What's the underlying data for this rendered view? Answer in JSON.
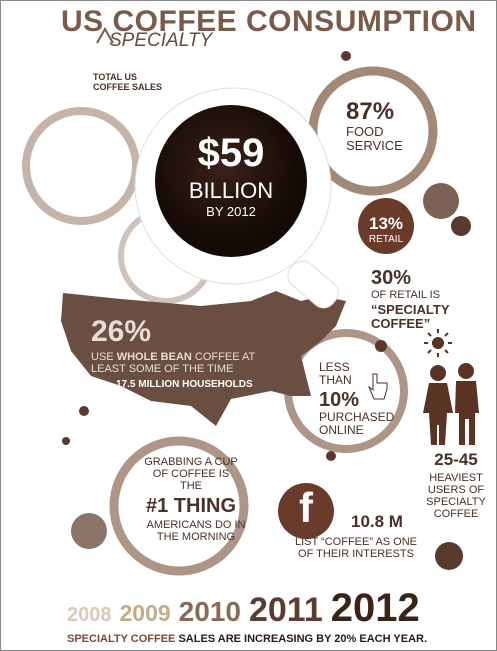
{
  "header": {
    "title": "US COFFEE CONSUMPTION",
    "insert": "SPECIALTY"
  },
  "total_sales": {
    "label": "TOTAL US COFFEE SALES",
    "amount": "$59",
    "unit": "BILLION",
    "year": "BY 2012"
  },
  "food_service": {
    "value": "87%",
    "label": "FOOD SERVICE"
  },
  "retail": {
    "value": "13%",
    "label": "RETAIL"
  },
  "specialty_retail": {
    "value": "30%",
    "label": "OF RETAIL IS",
    "quote": "“SPECIALTY COFFEE”"
  },
  "whole_bean": {
    "value": "26%",
    "text_start": "USE ",
    "text_bold": "WHOLE BEAN",
    "text_end": " COFFEE AT LEAST SOME OF THE TIME",
    "households": "17.5 MILLION HOUSEHOLDS"
  },
  "online": {
    "prefix": "LESS THAN",
    "value": "10%",
    "label": "PURCHASED ONLINE"
  },
  "age": {
    "value": "25-45",
    "label": "HEAVIEST USERS OF SPECIALTY COFFEE"
  },
  "morning": {
    "prefix": "GRABBING A CUP OF COFFEE IS THE",
    "highlight": "#1 THING",
    "suffix": "AMERICANS DO IN THE MORNING"
  },
  "facebook": {
    "icon": "f",
    "value": "10.8 M",
    "label": "LIST “COFFEE” AS ONE OF THEIR INTERESTS"
  },
  "years": [
    "2008",
    "2009",
    "2010",
    "2011",
    "2012"
  ],
  "footer": {
    "highlight": "SPECIALTY COFFEE",
    "text": " SALES ARE INCREASING BY 20% EACH YEAR."
  }
}
